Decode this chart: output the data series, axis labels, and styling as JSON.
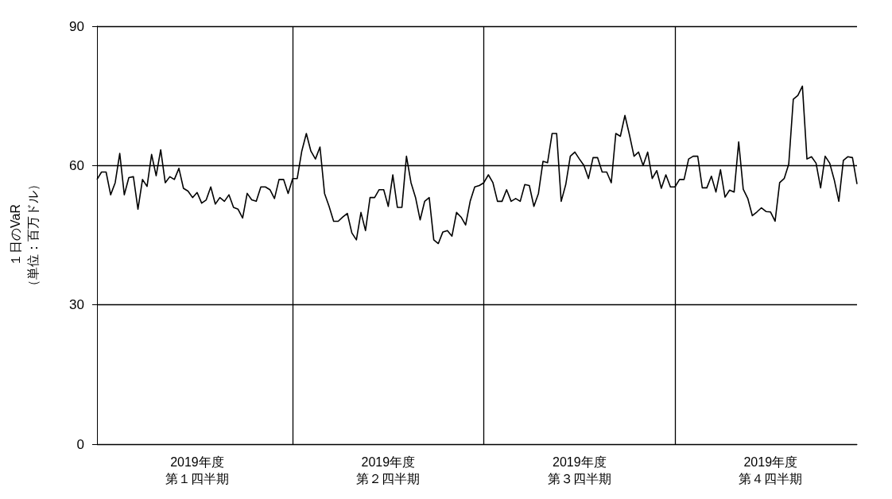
{
  "chart_data": {
    "type": "line",
    "ylabel": "１日のVaR\n（単位：百万ドル）",
    "categories": [
      null,
      null,
      null,
      null,
      null,
      null,
      null,
      null,
      null,
      null,
      null,
      null,
      null,
      null,
      null,
      null,
      null,
      null,
      null,
      null,
      null,
      null,
      "2019年度第１四半期",
      null,
      null,
      null,
      null,
      null,
      null,
      null,
      null,
      null,
      null,
      null,
      null,
      null,
      null,
      null,
      null,
      null,
      null,
      null,
      null,
      null,
      null,
      null,
      null,
      null,
      null,
      null,
      null,
      null,
      null,
      null,
      null,
      null,
      null,
      null,
      null,
      null,
      null,
      null,
      null,
      null,
      "2019年度第２四半期",
      null,
      null,
      null,
      null,
      null,
      null,
      null,
      null,
      null,
      null,
      null,
      null,
      null,
      null,
      null,
      null,
      null,
      null,
      null,
      null,
      null,
      null,
      null,
      null,
      null,
      null,
      null,
      null,
      null,
      null,
      null,
      null,
      null,
      null,
      null,
      null,
      null,
      null,
      null,
      null,
      null,
      "2019年度第３四半期",
      null,
      null,
      null,
      null,
      null,
      null,
      null,
      null,
      null,
      null,
      null,
      null,
      null,
      null,
      null,
      null,
      null,
      null,
      null,
      null,
      null,
      null,
      null,
      null,
      null,
      null,
      null,
      null,
      null,
      null,
      null,
      null,
      null,
      null,
      null,
      null,
      null,
      null,
      null,
      null,
      null,
      "2019年度第４四半期",
      null,
      null,
      null,
      null,
      null,
      null,
      null,
      null,
      null,
      null,
      null,
      null,
      null,
      null,
      null,
      null,
      null,
      null,
      null
    ],
    "ylim": [
      0,
      90
    ],
    "yticks": [
      0,
      30,
      60,
      90
    ],
    "grid": true,
    "marker": "none",
    "line_style": "solid",
    "series": [
      {
        "color": "#000000",
        "values": [
          57,
          58.6,
          58.6,
          53.7,
          56.3,
          62.6,
          53.7,
          57.4,
          57.6,
          50.6,
          57,
          55.5,
          62.4,
          57.8,
          63.4,
          56.3,
          57.6,
          57,
          59.4,
          55.1,
          54.5,
          53.1,
          54.2,
          51.9,
          52.6,
          55.4,
          51.7,
          53.1,
          52.3,
          53.7,
          51,
          50.6,
          48.7,
          54,
          52.6,
          52.3,
          55.4,
          55.4,
          54.8,
          52.9,
          57,
          57,
          54,
          57.2,
          57.2,
          63.1,
          66.9,
          63.1,
          61.4,
          64,
          54,
          51.2,
          48,
          48,
          48.9,
          49.7,
          45.5,
          44,
          49.9,
          46,
          53.1,
          53.1,
          54.8,
          54.8,
          51.2,
          58,
          51,
          51,
          62,
          56.3,
          53.1,
          48.3,
          52.3,
          53.1,
          44,
          43.2,
          45.7,
          46,
          44.8,
          49.9,
          48.9,
          47.2,
          52.3,
          55.4,
          55.7,
          56.3,
          58,
          56.3,
          52.3,
          52.3,
          54.8,
          52.3,
          52.9,
          52.3,
          55.9,
          55.7,
          51.2,
          54,
          60.9,
          60.6,
          66.9,
          66.9,
          52.3,
          55.9,
          62,
          62.9,
          61.4,
          60,
          57.2,
          61.7,
          61.7,
          58.6,
          58.6,
          56.3,
          66.9,
          66.3,
          70.8,
          66.6,
          62,
          62.9,
          60,
          62.9,
          57.2,
          58.9,
          55.1,
          58,
          55.4,
          55.4,
          57,
          57,
          61.4,
          62,
          62,
          55.2,
          55.2,
          57.7,
          54.3,
          59.1,
          53.2,
          54.7,
          54.3,
          65.1,
          54.9,
          52.9,
          49.2,
          50,
          50.9,
          50.1,
          50,
          48,
          56.3,
          57.2,
          60.3,
          74.3,
          75.1,
          77.1,
          61.4,
          61.9,
          60.5,
          55.2,
          62,
          60.5,
          56.9,
          52.3,
          61.1,
          61.9,
          61.7,
          56
        ]
      }
    ]
  }
}
